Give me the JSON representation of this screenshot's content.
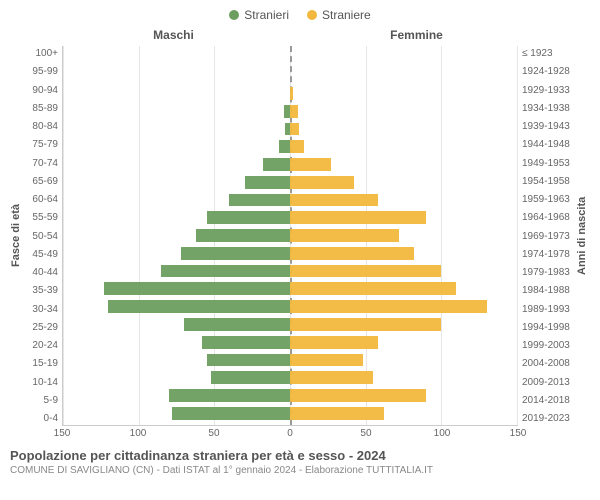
{
  "legend": {
    "male": {
      "label": "Stranieri",
      "color": "#6b9e5f"
    },
    "female": {
      "label": "Straniere",
      "color": "#f2b83d"
    }
  },
  "headers": {
    "left": "Maschi",
    "right": "Femmine"
  },
  "axis_titles": {
    "left": "Fasce di età",
    "right": "Anni di nascita"
  },
  "footer": {
    "title": "Popolazione per cittadinanza straniera per età e sesso - 2024",
    "subtitle": "COMUNE DI SAVIGLIANO (CN) - Dati ISTAT al 1° gennaio 2024 - Elaborazione TUTTITALIA.IT"
  },
  "chart": {
    "type": "population-pyramid",
    "xlim": 150,
    "xticks": [
      150,
      100,
      50,
      0,
      50,
      100,
      150
    ],
    "grid_color": "#e6e6e6",
    "centerline_color": "#999999",
    "background_color": "#ffffff",
    "male_color": "#6b9e5f",
    "female_color": "#f2b83d",
    "rows": [
      {
        "age": "100+",
        "birth": "≤ 1923",
        "m": 0,
        "f": 0
      },
      {
        "age": "95-99",
        "birth": "1924-1928",
        "m": 0,
        "f": 0
      },
      {
        "age": "90-94",
        "birth": "1929-1933",
        "m": 0,
        "f": 2
      },
      {
        "age": "85-89",
        "birth": "1934-1938",
        "m": 4,
        "f": 5
      },
      {
        "age": "80-84",
        "birth": "1939-1943",
        "m": 3,
        "f": 6
      },
      {
        "age": "75-79",
        "birth": "1944-1948",
        "m": 7,
        "f": 9
      },
      {
        "age": "70-74",
        "birth": "1949-1953",
        "m": 18,
        "f": 27
      },
      {
        "age": "65-69",
        "birth": "1954-1958",
        "m": 30,
        "f": 42
      },
      {
        "age": "60-64",
        "birth": "1959-1963",
        "m": 40,
        "f": 58
      },
      {
        "age": "55-59",
        "birth": "1964-1968",
        "m": 55,
        "f": 90
      },
      {
        "age": "50-54",
        "birth": "1969-1973",
        "m": 62,
        "f": 72
      },
      {
        "age": "45-49",
        "birth": "1974-1978",
        "m": 72,
        "f": 82
      },
      {
        "age": "40-44",
        "birth": "1979-1983",
        "m": 85,
        "f": 100
      },
      {
        "age": "35-39",
        "birth": "1984-1988",
        "m": 123,
        "f": 110
      },
      {
        "age": "30-34",
        "birth": "1989-1993",
        "m": 120,
        "f": 130
      },
      {
        "age": "25-29",
        "birth": "1994-1998",
        "m": 70,
        "f": 100
      },
      {
        "age": "20-24",
        "birth": "1999-2003",
        "m": 58,
        "f": 58
      },
      {
        "age": "15-19",
        "birth": "2004-2008",
        "m": 55,
        "f": 48
      },
      {
        "age": "10-14",
        "birth": "2009-2013",
        "m": 52,
        "f": 55
      },
      {
        "age": "5-9",
        "birth": "2014-2018",
        "m": 80,
        "f": 90
      },
      {
        "age": "0-4",
        "birth": "2019-2023",
        "m": 78,
        "f": 62
      }
    ]
  }
}
